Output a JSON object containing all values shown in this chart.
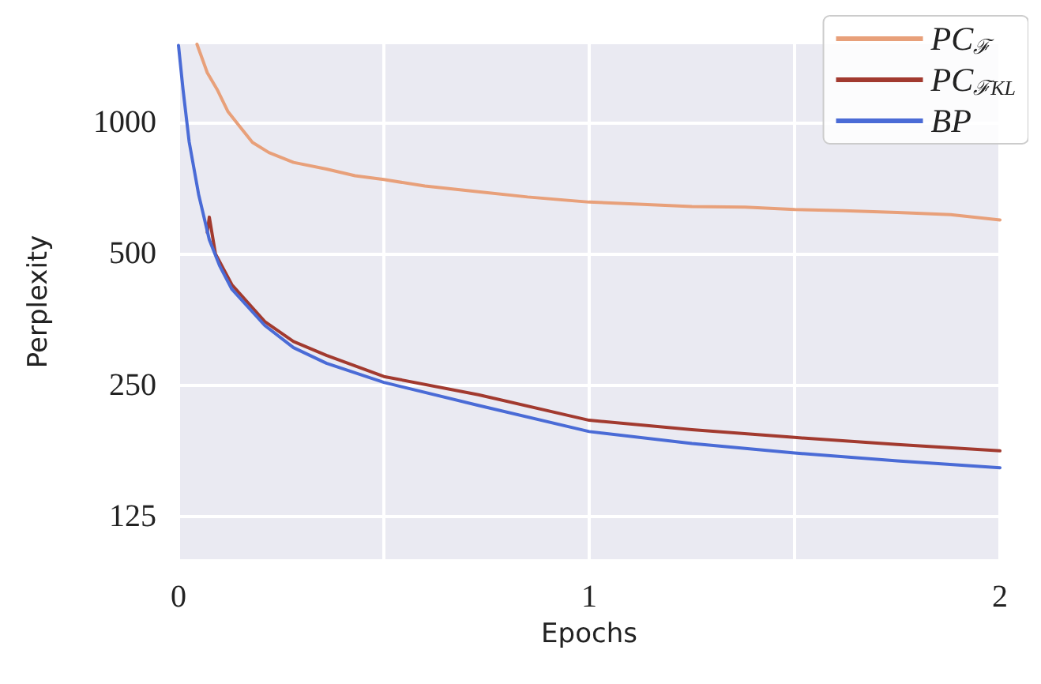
{
  "chart_data": {
    "type": "line",
    "xlabel": "Epochs",
    "ylabel": "Perplexity",
    "log": "y",
    "grid": true,
    "legend": "top right",
    "line_style": "solid",
    "marker": "none",
    "xlim": [
      0,
      2
    ],
    "xticks": [
      0,
      {
        "value": 0.5,
        "label": null
      },
      1,
      {
        "value": 1.5,
        "label": null
      },
      2
    ],
    "ylim": [
      100,
      1510
    ],
    "yticks": [
      125,
      250,
      500,
      1000
    ],
    "series": [
      {
        "name": "PC$_{ℱ}$",
        "color": "#e8a07a",
        "x": [
          0.045,
          0.07,
          0.094,
          0.12,
          0.15,
          0.18,
          0.22,
          0.28,
          0.36,
          0.43,
          0.5,
          0.6,
          0.73,
          0.85,
          1.0,
          1.12,
          1.25,
          1.38,
          1.5,
          1.62,
          1.75,
          1.88,
          2.0
        ],
        "values": [
          1510,
          1300,
          1190,
          1060,
          976,
          900,
          853,
          810,
          782,
          755,
          740,
          715,
          694,
          675,
          657,
          650,
          642,
          640,
          632,
          628,
          622,
          615,
          598
        ]
      },
      {
        "name": "PC$_{ℱKL}$",
        "color": "#a23a2f",
        "x": [
          0.07,
          0.075,
          0.09,
          0.13,
          0.21,
          0.28,
          0.36,
          0.5,
          0.73,
          1.0,
          1.25,
          1.5,
          1.75,
          2.0
        ],
        "values": [
          560,
          607,
          500,
          425,
          350,
          315,
          293,
          262,
          238,
          208,
          198,
          190,
          183,
          177
        ]
      },
      {
        "name": "BP",
        "color": "#4a6bd6",
        "x": [
          0,
          0.011,
          0.026,
          0.049,
          0.075,
          0.1,
          0.13,
          0.21,
          0.28,
          0.36,
          0.5,
          0.73,
          1.0,
          1.25,
          1.5,
          1.75,
          2.0
        ],
        "values": [
          1500,
          1190,
          902,
          684,
          539,
          470,
          415,
          343,
          305,
          281,
          254,
          225,
          196,
          184,
          175,
          168,
          162
        ]
      }
    ]
  }
}
